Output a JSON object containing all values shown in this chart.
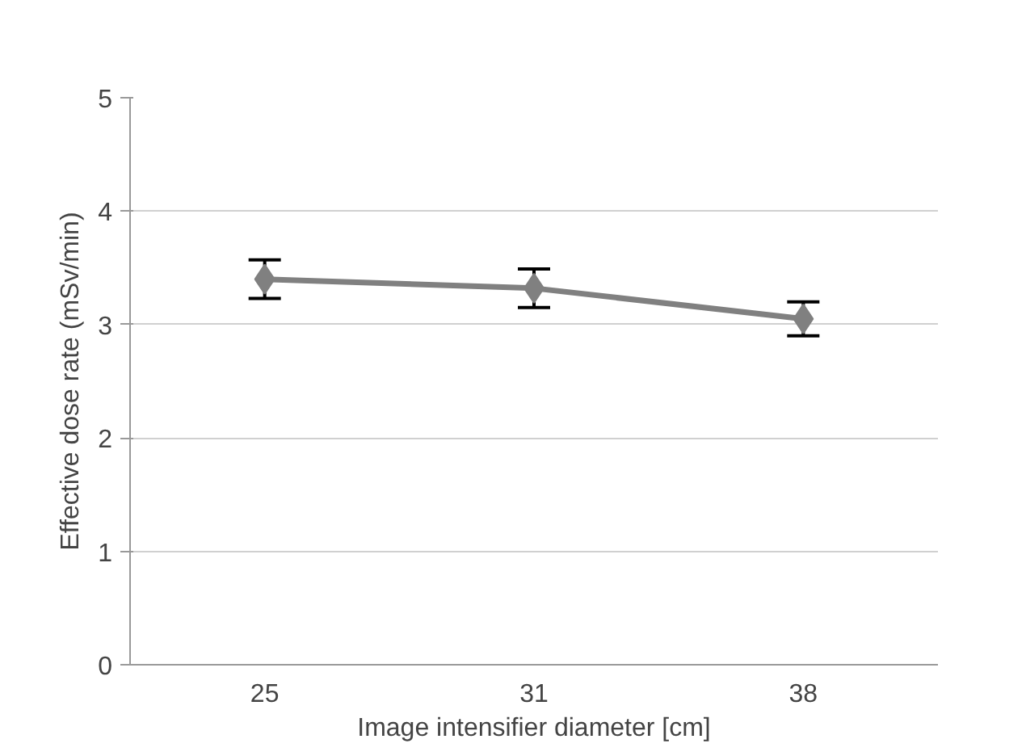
{
  "chart_data": {
    "type": "line",
    "xlabel": "Image intensifier diameter [cm]",
    "ylabel": "Effective dose rate (mSv/min)",
    "categories": [
      "25",
      "31",
      "38"
    ],
    "series": [
      {
        "color": "#808080",
        "values": [
          3.4,
          3.32,
          3.05
        ],
        "errors": [
          0.17,
          0.17,
          0.15
        ]
      }
    ],
    "ylim": [
      0,
      5
    ],
    "yticks": [
      0,
      1,
      2,
      3,
      4,
      5
    ],
    "grid": "y",
    "marker": "diamond",
    "line_style": "solid"
  }
}
